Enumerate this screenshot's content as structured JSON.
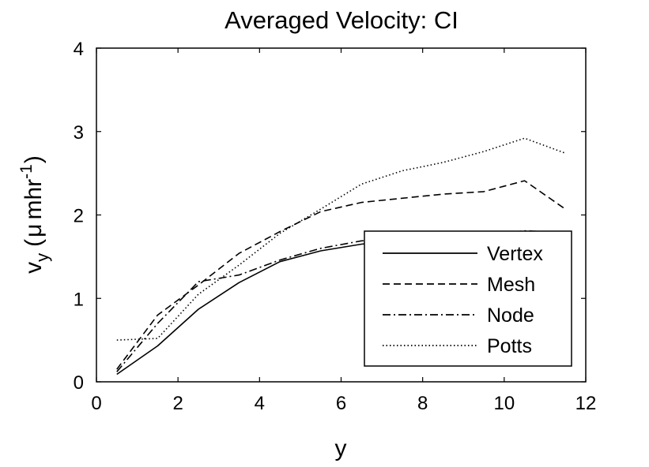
{
  "chart_data": {
    "type": "line",
    "title": "Averaged Velocity: CI",
    "xlabel": "y",
    "ylabel": {
      "main": "v",
      "subscript": "y",
      "unit_prefix": "(",
      "unit_mu": "μ",
      "unit_text": "mhr",
      "unit_superscript": "-1",
      "unit_suffix": ")"
    },
    "xlim": [
      0,
      12
    ],
    "ylim": [
      0,
      4
    ],
    "xticks": [
      "0",
      "2",
      "4",
      "6",
      "8",
      "10",
      "12"
    ],
    "yticks": [
      "0",
      "1",
      "2",
      "3",
      "4"
    ],
    "grid": false,
    "legend_position": "bottom-right",
    "x": [
      0.5,
      1.5,
      2.5,
      3.5,
      4.5,
      5.5,
      6.5,
      7.5,
      8.5,
      9.5,
      10.5,
      11.5
    ],
    "series": [
      {
        "name": "Vertex",
        "dash": "solid",
        "values": [
          0.09,
          0.43,
          0.87,
          1.19,
          1.44,
          1.57,
          1.65,
          1.7,
          1.73,
          1.76,
          1.8,
          1.79
        ]
      },
      {
        "name": "Mesh",
        "dash": "dashed",
        "values": [
          0.15,
          0.8,
          1.16,
          1.54,
          1.8,
          2.04,
          2.15,
          2.2,
          2.25,
          2.28,
          2.41,
          2.07
        ]
      },
      {
        "name": "Node",
        "dash": "dashdot",
        "values": [
          0.12,
          0.7,
          1.2,
          1.28,
          1.46,
          1.6,
          1.69,
          1.72,
          1.74,
          1.76,
          1.81,
          1.79
        ]
      },
      {
        "name": "Potts",
        "dash": "dotted",
        "values": [
          0.5,
          0.52,
          1.05,
          1.4,
          1.78,
          2.07,
          2.37,
          2.53,
          2.63,
          2.76,
          2.92,
          2.74
        ]
      }
    ]
  }
}
